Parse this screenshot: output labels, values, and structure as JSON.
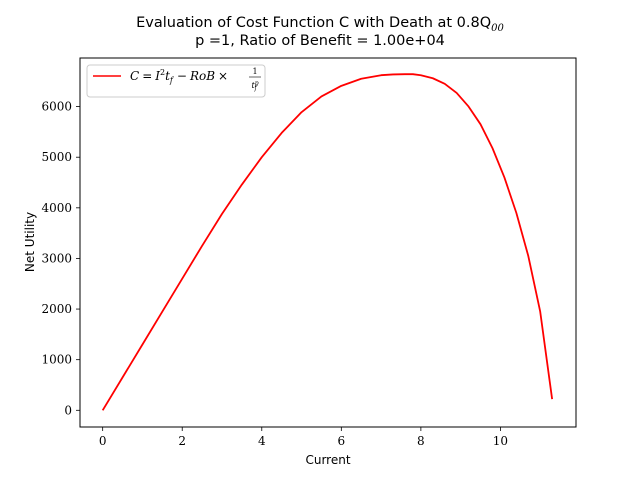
{
  "chart_data": {
    "type": "line",
    "title_line1": "Evaluation of Cost Function C with Death at 0.8Q",
    "title_line1_sub": "00",
    "title_line2": "p =1, Ratio of Benefit = 1.00e+04",
    "xlabel": "Current",
    "ylabel": "Net Utility",
    "xlim": [
      -0.57,
      11.9
    ],
    "ylim": [
      -330,
      6960
    ],
    "xticks": [
      0,
      2,
      4,
      6,
      8,
      10
    ],
    "yticks": [
      0,
      1000,
      2000,
      3000,
      4000,
      5000,
      6000
    ],
    "grid": false,
    "legend_position": "top-left",
    "legend_label": "C = I²t_f − RoB × 1/t_f^p",
    "series": [
      {
        "color": "#ff0000",
        "x": [
          0,
          0.5,
          1,
          1.5,
          2,
          2.5,
          3,
          3.5,
          4,
          4.5,
          5,
          5.5,
          6,
          6.5,
          7,
          7.3,
          7.6,
          7.8,
          8.0,
          8.3,
          8.6,
          8.9,
          9.2,
          9.5,
          9.8,
          10.1,
          10.4,
          10.7,
          11.0,
          11.3
        ],
        "y": [
          0,
          650,
          1300,
          1950,
          2600,
          3250,
          3880,
          4460,
          5000,
          5480,
          5890,
          6200,
          6410,
          6550,
          6620,
          6635,
          6640,
          6640,
          6620,
          6560,
          6450,
          6270,
          6000,
          5650,
          5180,
          4600,
          3900,
          3050,
          1950,
          220
        ]
      }
    ]
  }
}
